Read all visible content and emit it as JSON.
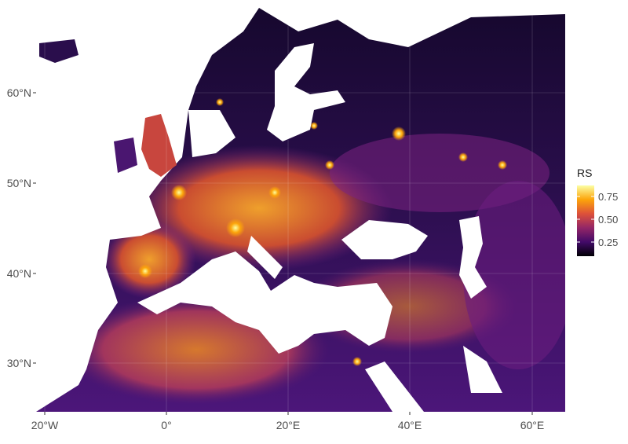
{
  "map": {
    "y_ticks": [
      "60°N",
      "50°N",
      "40°N",
      "30°N"
    ],
    "x_ticks": [
      "20°W",
      "0°",
      "20°E",
      "40°E",
      "60°E"
    ]
  },
  "legend": {
    "title": "RS",
    "ticks": [
      "0.75",
      "0.50",
      "0.25"
    ],
    "tick_values": [
      0.75,
      0.5,
      0.25
    ],
    "range": [
      0.05,
      0.9
    ],
    "colors": [
      "#000004",
      "#420a68",
      "#932667",
      "#dd513a",
      "#fca50a",
      "#fcffa4"
    ]
  },
  "palette": {
    "land_low": "#2a0e4c",
    "land_mid": "#7b2381",
    "land_high": "#ef7d1e",
    "hot": "#fcd84a",
    "water": "#ffffff"
  }
}
